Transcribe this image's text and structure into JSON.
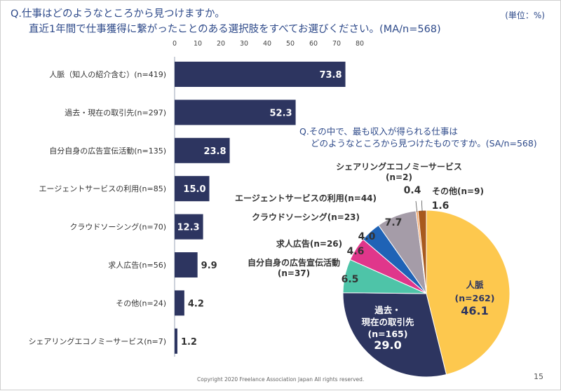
{
  "header": {
    "question_1": "Q.仕事はどのようなところから見つけますか。",
    "question_2": "直近1年間で仕事獲得に繋がったことのある選択肢をすべてお選びください。(MA/n=568)",
    "unit": "(単位：%)"
  },
  "sub_question": {
    "line_1": "Q.その中で、最も収入が得られる仕事は",
    "line_2": "どのようなところから見つけたものですか。(SA/n=568)"
  },
  "footer": {
    "copyright": "Copyright 2020 Freelance Association Japan  All rights reserved.",
    "page_number": "15"
  },
  "chart_data": [
    {
      "type": "bar",
      "orientation": "horizontal",
      "xlim": [
        0,
        80
      ],
      "ticks": [
        "0",
        "10",
        "20",
        "30",
        "40",
        "50",
        "60",
        "70",
        "80"
      ],
      "categories": [
        "人脈（知人の紹介含む）(n=419)",
        "過去・現在の取引先(n=297)",
        "自分自身の広告宣伝活動(n=135)",
        "エージェントサービスの利用(n=85)",
        "クラウドソーシング(n=70)",
        "求人広告(n=56)",
        "その他(n=24)",
        "シェアリングエコノミーサービス(n=7)"
      ],
      "values": [
        73.8,
        52.3,
        23.8,
        15.0,
        12.3,
        9.9,
        4.2,
        1.2
      ],
      "labels": [
        "73.8",
        "52.3",
        "23.8",
        "15.0",
        "12.3",
        "9.9",
        "4.2",
        "1.2"
      ],
      "colors": {
        "bar": "#2d3560",
        "label_inside": "#ffffff",
        "label_outside": "#333333"
      }
    },
    {
      "type": "pie",
      "slices": [
        {
          "lines": [
            "人脈",
            "(n=262)"
          ],
          "value": 46.1,
          "label": "46.1",
          "color": "#fdc84e"
        },
        {
          "lines": [
            "過去・",
            "現在の取引先",
            "(n=165)"
          ],
          "value": 29.0,
          "label": "29.0",
          "color": "#2d3560"
        },
        {
          "lines": [
            "自分自身の広告宣伝活動",
            "(n=37)"
          ],
          "value": 6.5,
          "label": "6.5",
          "color": "#4ec4a8"
        },
        {
          "lines": [
            "求人広告(n=26)"
          ],
          "value": 4.6,
          "label": "4.6",
          "color": "#e0368b"
        },
        {
          "lines": [
            "クラウドソーシング(n=23)"
          ],
          "value": 4.0,
          "label": "4.0",
          "color": "#1f63b6"
        },
        {
          "lines": [
            "エージェントサービスの利用(n=44)"
          ],
          "value": 7.7,
          "label": "7.7",
          "color": "#a59ca8"
        },
        {
          "lines": [
            "シェアリングエコノミーサービス",
            "(n=2)"
          ],
          "value": 0.4,
          "label": "0.4",
          "color": "#f4a261"
        },
        {
          "lines": [
            "その他(n=9)"
          ],
          "value": 1.6,
          "label": "1.6",
          "color": "#a85a1e"
        }
      ]
    }
  ]
}
